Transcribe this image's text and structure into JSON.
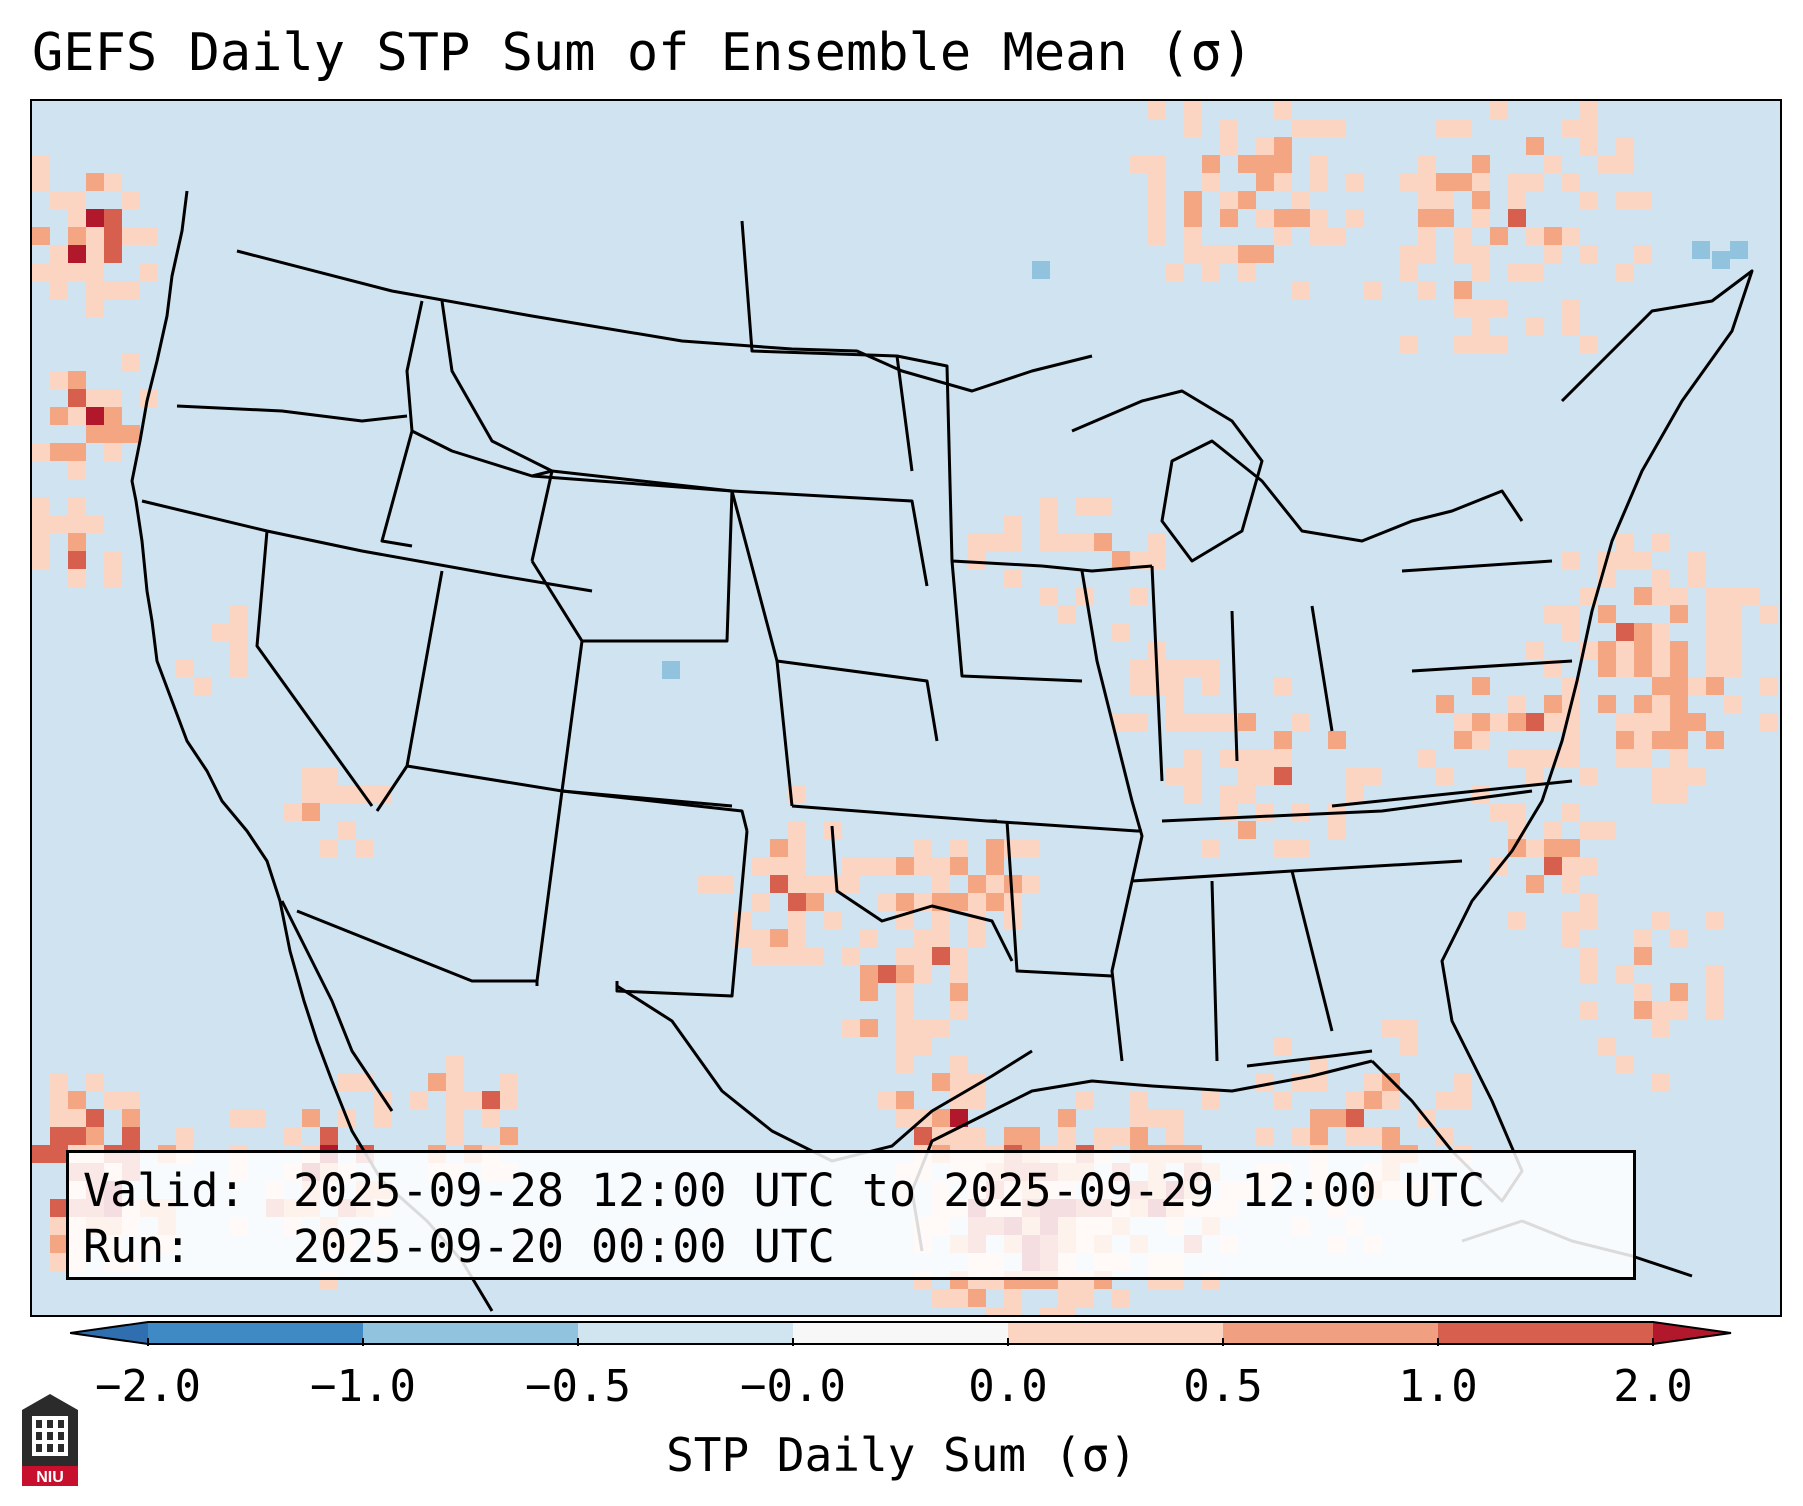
{
  "title": "GEFS Daily STP Sum of Ensemble Mean (σ)",
  "valid_box": {
    "valid_label": "Valid:",
    "valid_value": "2025-09-28 12:00 UTC to 2025-09-29 12:00 UTC",
    "run_label": "Run:",
    "run_value": "2025-09-20 00:00 UTC"
  },
  "colorbar": {
    "label": "STP Daily Sum (σ)",
    "ticks": [
      "−2.0",
      "−1.0",
      "−0.5",
      "−0.0",
      "0.0",
      "0.5",
      "1.0",
      "2.0"
    ],
    "colors": {
      "below_min": "#2f6fb0",
      "bin_neg2_neg1": "#3f89c4",
      "bin_neg1_neg05": "#91c3df",
      "bin_neg05_neg0": "#d1e5f0",
      "bin_neg0_0": "#f7f7f7",
      "bin_0_05": "#fcd5c2",
      "bin_05_1": "#f0a080",
      "bin_1_2": "#d6604d",
      "above_max": "#b2182b"
    }
  },
  "map": {
    "region": "Continental United States",
    "background_color": "#cfe3f0",
    "border_color": "#000000",
    "field_colors": [
      "#fcd5c2",
      "#f4a582",
      "#d6604d",
      "#b2182b",
      "#91c3df"
    ]
  },
  "logo": {
    "text": "NIU",
    "colors": [
      "#2b2b2b",
      "#c8102e"
    ]
  }
}
